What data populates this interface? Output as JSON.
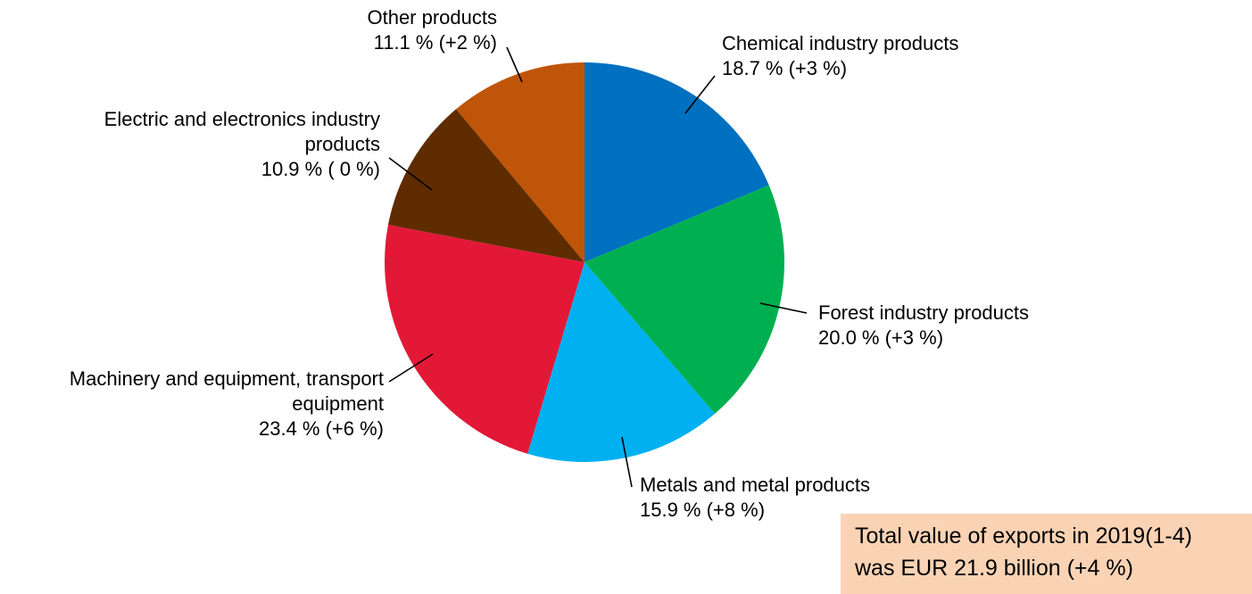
{
  "chart_data": {
    "type": "pie",
    "title": "",
    "slices": [
      {
        "label_lines": [
          "Chemical industry products"
        ],
        "value": 18.7,
        "value_text": "18.7 % (+3 %)",
        "color": "#0070c0"
      },
      {
        "label_lines": [
          "Forest industry products"
        ],
        "value": 20.0,
        "value_text": "20.0 % (+3 %)",
        "color": "#00b050"
      },
      {
        "label_lines": [
          "Metals and metal products"
        ],
        "value": 15.9,
        "value_text": "15.9 % (+8 %)",
        "color": "#00b0f0"
      },
      {
        "label_lines": [
          "Machinery and equipment, transport",
          "equipment"
        ],
        "value": 23.4,
        "value_text": "23.4 % (+6 %)",
        "color": "#e31837"
      },
      {
        "label_lines": [
          "Electric and electronics industry",
          "products"
        ],
        "value": 10.9,
        "value_text": "10.9 % ( 0 %)",
        "color": "#5f2c00"
      },
      {
        "label_lines": [
          "Other products"
        ],
        "value": 11.1,
        "value_text": "11.1 % (+2 %)",
        "color": "#bf5508"
      }
    ],
    "start_angle_deg": 0,
    "direction": "clockwise"
  },
  "total_box": {
    "line1": "Total value of exports in 2019(1-4)",
    "line2": "was EUR 21.9 billion (+4 %)",
    "background": "#f9d3b4"
  }
}
